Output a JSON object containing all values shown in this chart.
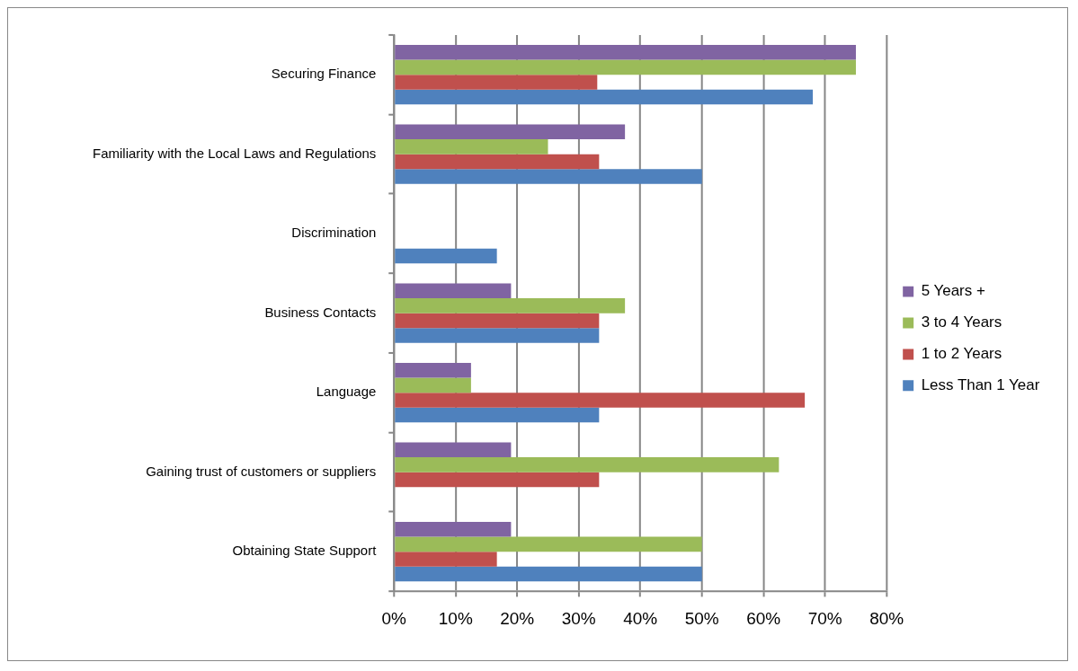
{
  "chart_data": {
    "type": "bar",
    "orientation": "horizontal",
    "categories": [
      "Securing Finance",
      "Familiarity with the Local Laws and Regulations",
      "Discrimination",
      "Business Contacts",
      "Language",
      "Gaining trust of customers or suppliers",
      "Obtaining State Support"
    ],
    "series": [
      {
        "name": "5 Years +",
        "color": "#8064a2",
        "values": [
          75,
          37.5,
          0,
          19,
          12.5,
          19,
          19
        ]
      },
      {
        "name": "3 to 4 Years",
        "color": "#9bbb59",
        "values": [
          75,
          25,
          0,
          37.5,
          12.5,
          62.5,
          50
        ]
      },
      {
        "name": "1 to 2 Years",
        "color": "#c0504d",
        "values": [
          33,
          33.3,
          0,
          33.3,
          66.7,
          33.3,
          16.7
        ]
      },
      {
        "name": "Less Than 1 Year",
        "color": "#4f81bd",
        "values": [
          68,
          50,
          16.7,
          33.3,
          33.3,
          0,
          50
        ]
      }
    ],
    "xlim": [
      0,
      80
    ],
    "xticks": [
      {
        "value": 0,
        "label": "0%"
      },
      {
        "value": 10,
        "label": "10%"
      },
      {
        "value": 20,
        "label": "20%"
      },
      {
        "value": 30,
        "label": "30%"
      },
      {
        "value": 40,
        "label": "40%"
      },
      {
        "value": 50,
        "label": "50%"
      },
      {
        "value": 60,
        "label": "60%"
      },
      {
        "value": 70,
        "label": "70%"
      },
      {
        "value": 80,
        "label": "80%"
      }
    ],
    "grid": "x",
    "legend": "right"
  }
}
